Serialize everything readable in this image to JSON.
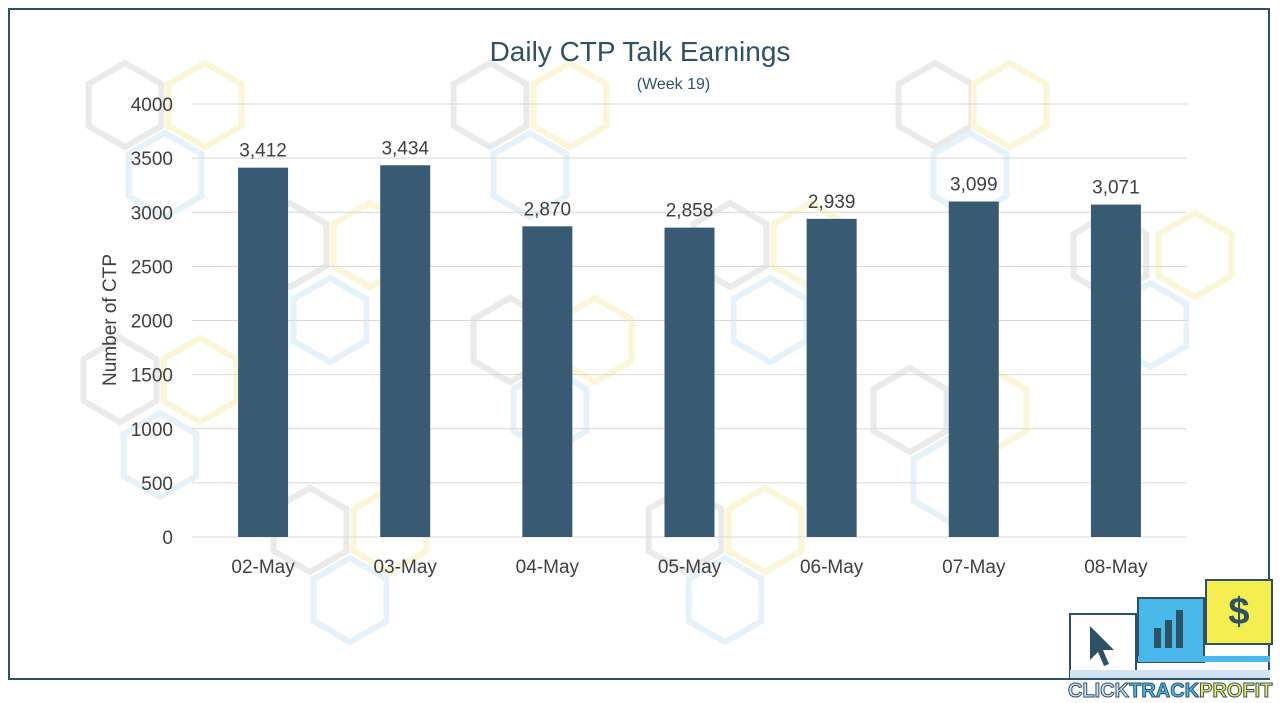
{
  "chart_data": {
    "type": "bar",
    "title": "Daily CTP Talk Earnings",
    "subtitle": "(Week 19)",
    "ylabel": "Number of CTP",
    "xlabel": "",
    "categories": [
      "02-May",
      "03-May",
      "04-May",
      "05-May",
      "06-May",
      "07-May",
      "08-May"
    ],
    "values": [
      3412,
      3434,
      2870,
      2858,
      2939,
      3099,
      3071
    ],
    "data_labels": [
      "3,412",
      "3,434",
      "2,870",
      "2,858",
      "2,939",
      "3,099",
      "3,071"
    ],
    "ylim": [
      0,
      4000
    ],
    "yticks": [
      0,
      500,
      1000,
      1500,
      2000,
      2500,
      3000,
      3500,
      4000
    ],
    "grid": true,
    "legend": "none",
    "bar_color": "#385b73"
  },
  "logo": {
    "text_click": "CLICK",
    "text_track": "TRACK",
    "text_profit": "PROFIT"
  },
  "colors": {
    "frame": "#2f5166",
    "logo_blue": "#48b9ea",
    "logo_yellow": "#f4ee50"
  }
}
